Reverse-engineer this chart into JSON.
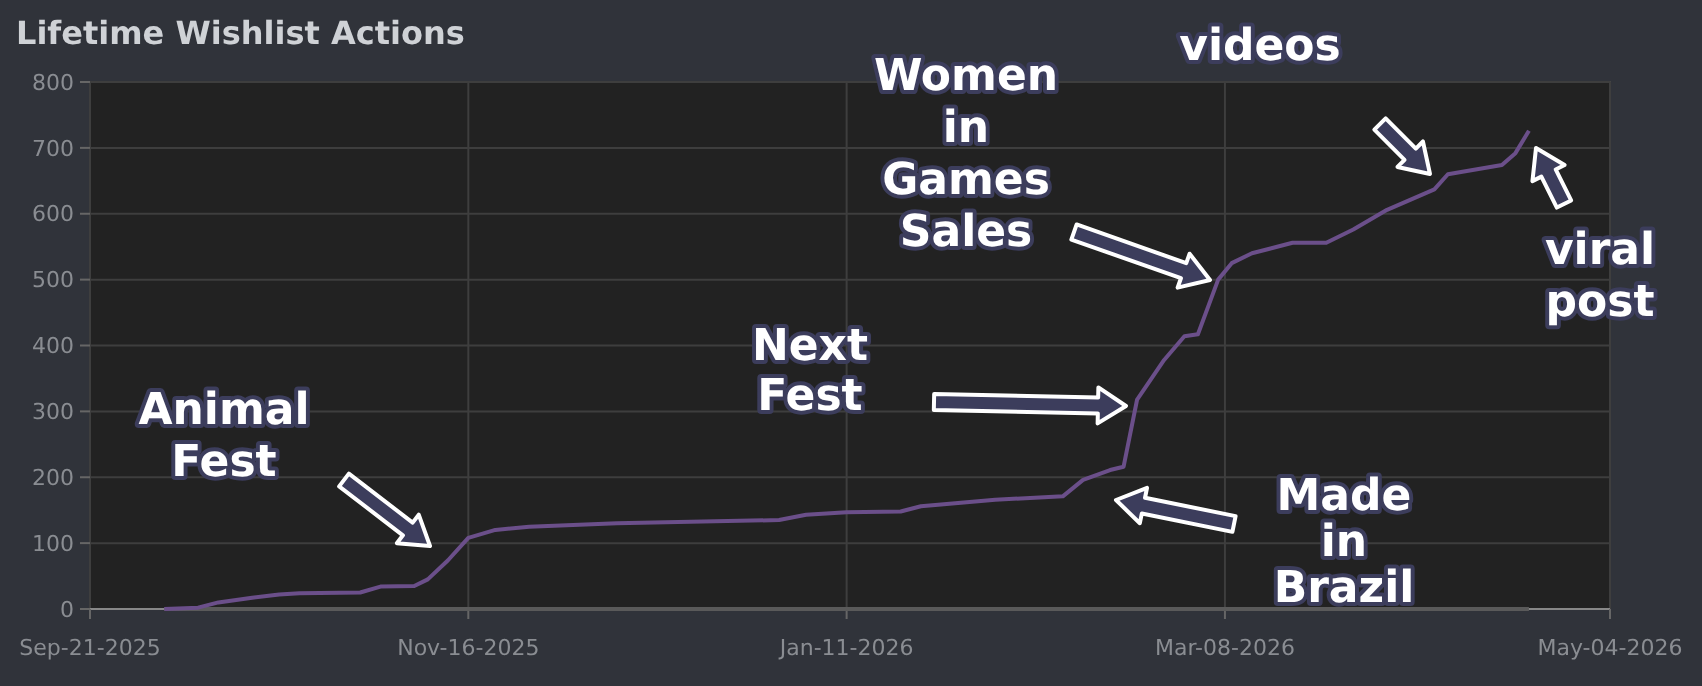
{
  "chart_data": {
    "type": "line",
    "title": "Lifetime Wishlist Actions",
    "xlim": [
      "2025-09-21",
      "2026-05-04"
    ],
    "xticks": [
      {
        "value": "2025-09-21",
        "label": "Sep-21-2025"
      },
      {
        "value": "2025-11-16",
        "label": "Nov-16-2025"
      },
      {
        "value": "2026-01-11",
        "label": "Jan-11-2026"
      },
      {
        "value": "2026-03-08",
        "label": "Mar-08-2026"
      },
      {
        "value": "2026-05-04",
        "label": "May-04-2026"
      }
    ],
    "ylim": [
      0,
      800
    ],
    "yticks": [
      0,
      100,
      200,
      300,
      400,
      500,
      600,
      700,
      800
    ],
    "grid": true,
    "series": [
      {
        "color": "#5a5a5a",
        "x": [
          "2025-10-02",
          "2026-04-22"
        ],
        "values": [
          0,
          0
        ]
      },
      {
        "color": "#6b4f8a",
        "x": [
          "2025-10-02",
          "2025-10-07",
          "2025-10-10",
          "2025-10-15",
          "2025-10-19",
          "2025-10-22",
          "2025-10-31",
          "2025-11-03",
          "2025-11-08",
          "2025-11-10",
          "2025-11-13",
          "2025-11-16",
          "2025-11-20",
          "2025-11-25",
          "2025-12-08",
          "2026-01-01",
          "2026-01-05",
          "2026-01-11",
          "2026-01-19",
          "2026-01-22",
          "2026-02-02",
          "2026-02-12",
          "2026-02-15",
          "2026-02-19",
          "2026-02-21",
          "2026-02-23",
          "2026-02-27",
          "2026-03-02",
          "2026-03-04",
          "2026-03-07",
          "2026-03-09",
          "2026-03-12",
          "2026-03-18",
          "2026-03-23",
          "2026-03-27",
          "2026-04-01",
          "2026-04-08",
          "2026-04-10",
          "2026-04-18",
          "2026-04-20",
          "2026-04-22"
        ],
        "values": [
          0,
          2,
          10,
          17,
          22,
          24,
          25,
          34,
          35,
          45,
          74,
          108,
          120,
          125,
          130,
          135,
          143,
          147,
          148,
          156,
          166,
          171,
          196,
          211,
          216,
          318,
          378,
          414,
          417,
          500,
          525,
          540,
          556,
          556,
          576,
          606,
          637,
          660,
          674,
          692,
          726
        ]
      }
    ],
    "annotations": [
      "Animal\nFest",
      "Next\nFest",
      "Women\nin\nGames\nSales",
      "videos",
      "viral\npost",
      "Made\nin\nBrazil"
    ]
  }
}
